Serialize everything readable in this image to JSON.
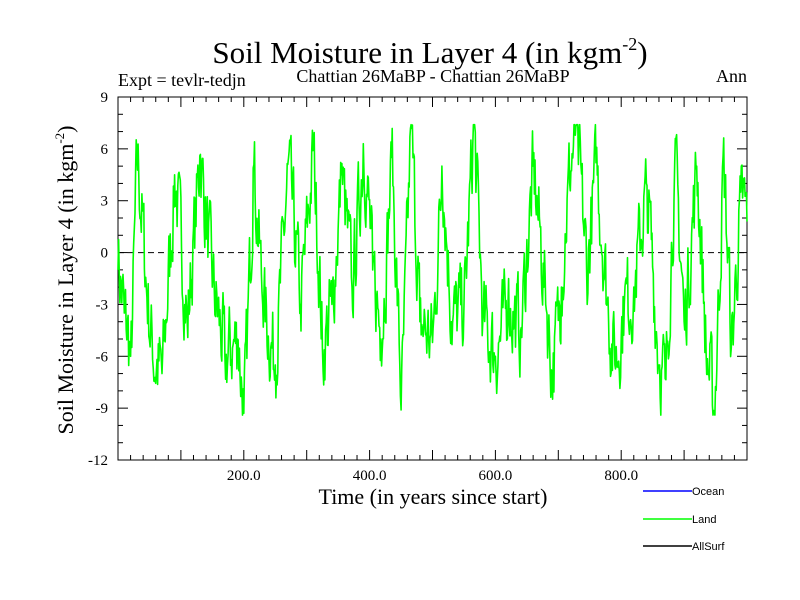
{
  "chart_data": {
    "type": "line",
    "title_main": "Soil Moisture in Layer 4 (in kgm",
    "title_sup": "-2",
    "title_close": ")",
    "expt_label": "Expt = tevlr-tedjn",
    "subtitle": "Chattian  26MaBP - Chattian  26MaBP",
    "season": "Ann",
    "xlabel": "Time (in years since start)",
    "ylabel_main": "Soil Moisture in Layer 4 (in kgm",
    "ylabel_sup": "-2",
    "ylabel_close": ")",
    "xlim": [
      0,
      1000
    ],
    "ylim": [
      -12,
      9
    ],
    "x_ticks": [
      200,
      400,
      600,
      800
    ],
    "x_tick_labels": [
      "200.0",
      "400.0",
      "600.0",
      "800.0"
    ],
    "y_ticks": [
      -12,
      -9,
      -6,
      -3,
      0,
      3,
      6,
      9
    ],
    "y_tick_labels": [
      "-12",
      "-9",
      "-6",
      "-3",
      "0",
      "3",
      "6",
      "9"
    ],
    "zero_line": 0,
    "series": [
      {
        "name": "Ocean",
        "color": "#0000ff",
        "values": []
      },
      {
        "name": "Land",
        "color": "#00ff00",
        "keypoints": [
          [
            0,
            -1
          ],
          [
            10,
            -3.5
          ],
          [
            20,
            -6
          ],
          [
            30,
            5.8
          ],
          [
            45,
            -2
          ],
          [
            55,
            -6.2
          ],
          [
            70,
            -7
          ],
          [
            90,
            4.5
          ],
          [
            110,
            -4
          ],
          [
            130,
            5.6
          ],
          [
            150,
            -2
          ],
          [
            170,
            -6
          ],
          [
            190,
            -5
          ],
          [
            200,
            -9.3
          ],
          [
            215,
            4.9
          ],
          [
            230,
            -3
          ],
          [
            250,
            -6.5
          ],
          [
            270,
            5.1
          ],
          [
            290,
            -3
          ],
          [
            310,
            5.9
          ],
          [
            325,
            -5.5
          ],
          [
            340,
            -3
          ],
          [
            355,
            4.5
          ],
          [
            372,
            -2
          ],
          [
            390,
            6.3
          ],
          [
            405,
            -1
          ],
          [
            418,
            -5
          ],
          [
            435,
            5.5
          ],
          [
            450,
            -9.1
          ],
          [
            465,
            7.2
          ],
          [
            480,
            -4
          ],
          [
            500,
            -5.2
          ],
          [
            515,
            5
          ],
          [
            530,
            -4
          ],
          [
            550,
            -3
          ],
          [
            565,
            7.4
          ],
          [
            580,
            -4
          ],
          [
            600,
            -6
          ],
          [
            620,
            -3
          ],
          [
            640,
            -4.5
          ],
          [
            660,
            5
          ],
          [
            680,
            -3
          ],
          [
            690,
            -7
          ],
          [
            705,
            -2
          ],
          [
            715,
            4
          ],
          [
            728,
            7.3
          ],
          [
            745,
            -1
          ],
          [
            760,
            5.2
          ],
          [
            780,
            -4
          ],
          [
            790,
            -6.5
          ],
          [
            805,
            -3
          ],
          [
            820,
            -2
          ],
          [
            840,
            4
          ],
          [
            860,
            -6.6
          ],
          [
            870,
            -7.3
          ],
          [
            885,
            5.2
          ],
          [
            900,
            -4
          ],
          [
            920,
            5
          ],
          [
            935,
            -5.8
          ],
          [
            948,
            -9.2
          ],
          [
            962,
            5.6
          ],
          [
            975,
            -5.5
          ],
          [
            990,
            3.5
          ],
          [
            1000,
            1.8
          ]
        ],
        "seed": 7,
        "noise": 4.5
      },
      {
        "name": "AllSurf",
        "color": "#000000",
        "values": []
      }
    ],
    "legend_position": "bottom-right"
  }
}
